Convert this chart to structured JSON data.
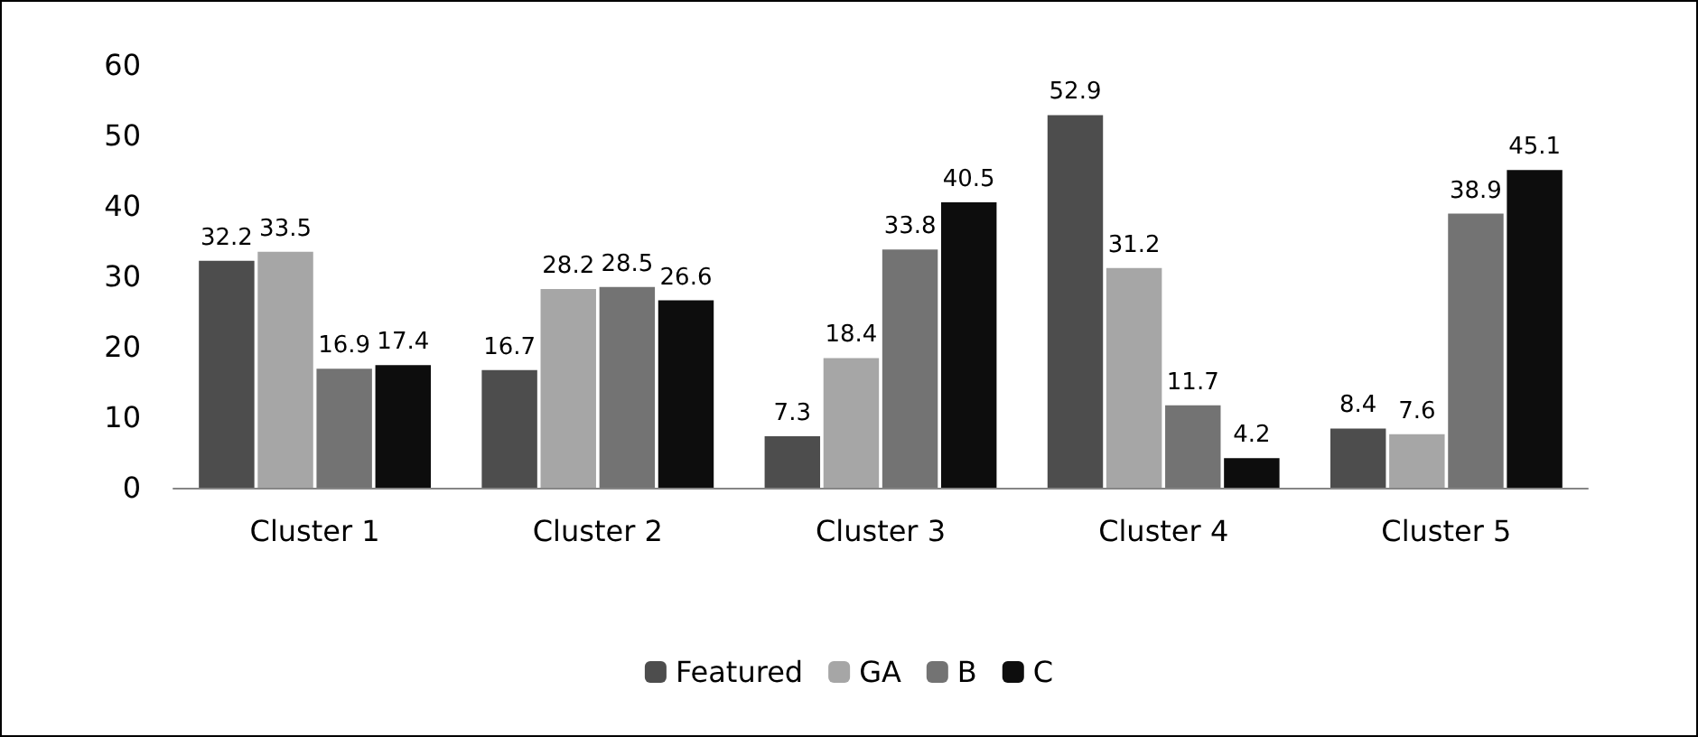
{
  "chart_data": {
    "type": "bar",
    "categories": [
      "Cluster 1",
      "Cluster 2",
      "Cluster 3",
      "Cluster 4",
      "Cluster 5"
    ],
    "series": [
      {
        "name": "Featured",
        "color": "#4d4d4d",
        "values": [
          32.2,
          16.7,
          7.3,
          52.9,
          8.4
        ]
      },
      {
        "name": "GA",
        "color": "#a6a6a6",
        "values": [
          33.5,
          28.2,
          18.4,
          31.2,
          7.6
        ]
      },
      {
        "name": "B",
        "color": "#737373",
        "values": [
          16.9,
          28.5,
          33.8,
          11.7,
          38.9
        ]
      },
      {
        "name": "C",
        "color": "#0d0d0d",
        "values": [
          17.4,
          26.6,
          40.5,
          4.2,
          45.1
        ]
      }
    ],
    "ylim": [
      0,
      60
    ],
    "yticks": [
      0,
      10,
      20,
      30,
      40,
      50,
      60
    ],
    "grid": false,
    "legend": "bottom",
    "data_labels": true
  }
}
